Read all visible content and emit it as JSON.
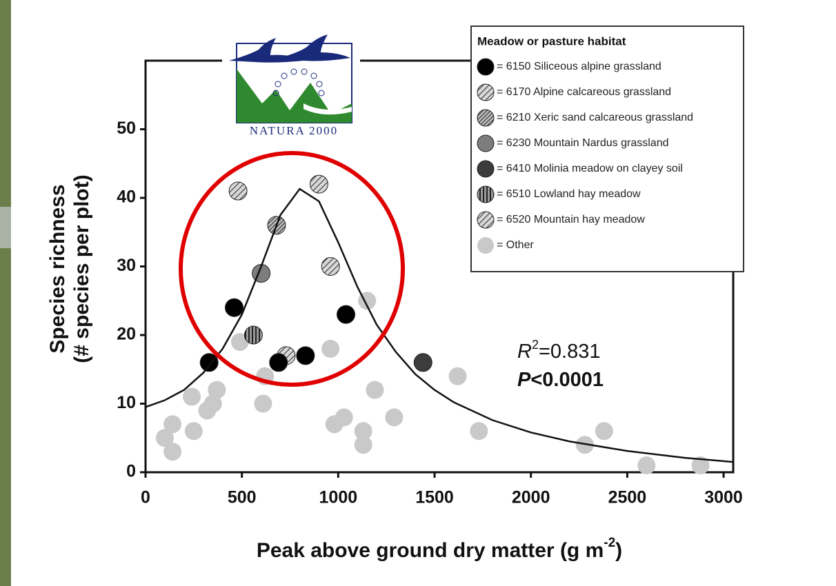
{
  "chart_data": {
    "type": "scatter",
    "xlabel": "Peak above ground dry matter (g m",
    "xlabel_sup": "-2",
    "xlabel_end": ")",
    "ylabel": [
      "Species richness",
      "(# species per plot)"
    ],
    "xlim": [
      0,
      3050
    ],
    "ylim": [
      0,
      60
    ],
    "xticks": [
      0,
      500,
      1000,
      1500,
      2000,
      2500,
      3000
    ],
    "yticks": [
      0,
      10,
      20,
      30,
      40,
      50
    ],
    "legend_title": "Meadow or pasture habitat",
    "logo_text": "NATURA 2000",
    "stat_r": "R",
    "stat_r_sup": "2",
    "stat_r_val": "=0.831",
    "stat_p": "P",
    "stat_p_val": "<0.0001",
    "series": [
      {
        "name": "= 6150 Siliceous alpine grassland",
        "color": "#000000",
        "hatch": "none",
        "x": [
          330,
          460,
          690,
          830,
          1040
        ],
        "values": [
          16,
          24,
          16,
          17,
          23
        ]
      },
      {
        "name": "= 6170 Alpine calcareous grassland",
        "color": "#9a9a9a",
        "hatch": "diag",
        "x": [
          480,
          900,
          730
        ],
        "values": [
          41,
          42,
          17
        ]
      },
      {
        "name": "= 6210 Xeric sand calcareous grassland",
        "color": "#8a8a8a",
        "hatch": "diag-dense",
        "x": [
          680
        ],
        "values": [
          36
        ]
      },
      {
        "name": "= 6230 Mountain Nardus grassland",
        "color": "#7d7d7d",
        "hatch": "none",
        "x": [
          600
        ],
        "values": [
          29
        ]
      },
      {
        "name": "= 6410 Molinia meadow on clayey soil",
        "color": "#3c3c3c",
        "hatch": "none",
        "x": [
          1440
        ],
        "values": [
          16
        ]
      },
      {
        "name": "= 6510 Lowland hay meadow",
        "color": "#707070",
        "hatch": "vertical",
        "x": [
          560
        ],
        "values": [
          20
        ]
      },
      {
        "name": "= 6520 Mountain hay meadow",
        "color": "#444444",
        "hatch": "diag",
        "x": [
          960
        ],
        "values": [
          30
        ]
      },
      {
        "name": "= Other",
        "color": "#c9c9c9",
        "hatch": "none",
        "x": [
          100,
          140,
          140,
          240,
          250,
          320,
          350,
          370,
          490,
          610,
          620,
          980,
          960,
          1030,
          1130,
          1130,
          1150,
          1190,
          1290,
          1620,
          1730,
          2280,
          2380,
          2600,
          2880
        ],
        "values": [
          5,
          7,
          3,
          11,
          6,
          9,
          10,
          12,
          19,
          10,
          14,
          7,
          18,
          8,
          6,
          4,
          25,
          12,
          8,
          14,
          6,
          4,
          6,
          1,
          1
        ]
      }
    ],
    "fit": {
      "x": [
        0,
        100,
        200,
        300,
        400,
        500,
        600,
        700,
        800,
        900,
        1000,
        1100,
        1200,
        1300,
        1400,
        1500,
        1600,
        1800,
        2000,
        2200,
        2500,
        2800,
        3050
      ],
      "y": [
        9.5,
        10.5,
        12,
        14.5,
        18,
        23,
        30,
        37.5,
        41.3,
        39.5,
        33.5,
        27,
        21.5,
        17.5,
        14.3,
        12,
        10.2,
        7.6,
        5.8,
        4.5,
        3.1,
        2.1,
        1.5
      ]
    }
  }
}
